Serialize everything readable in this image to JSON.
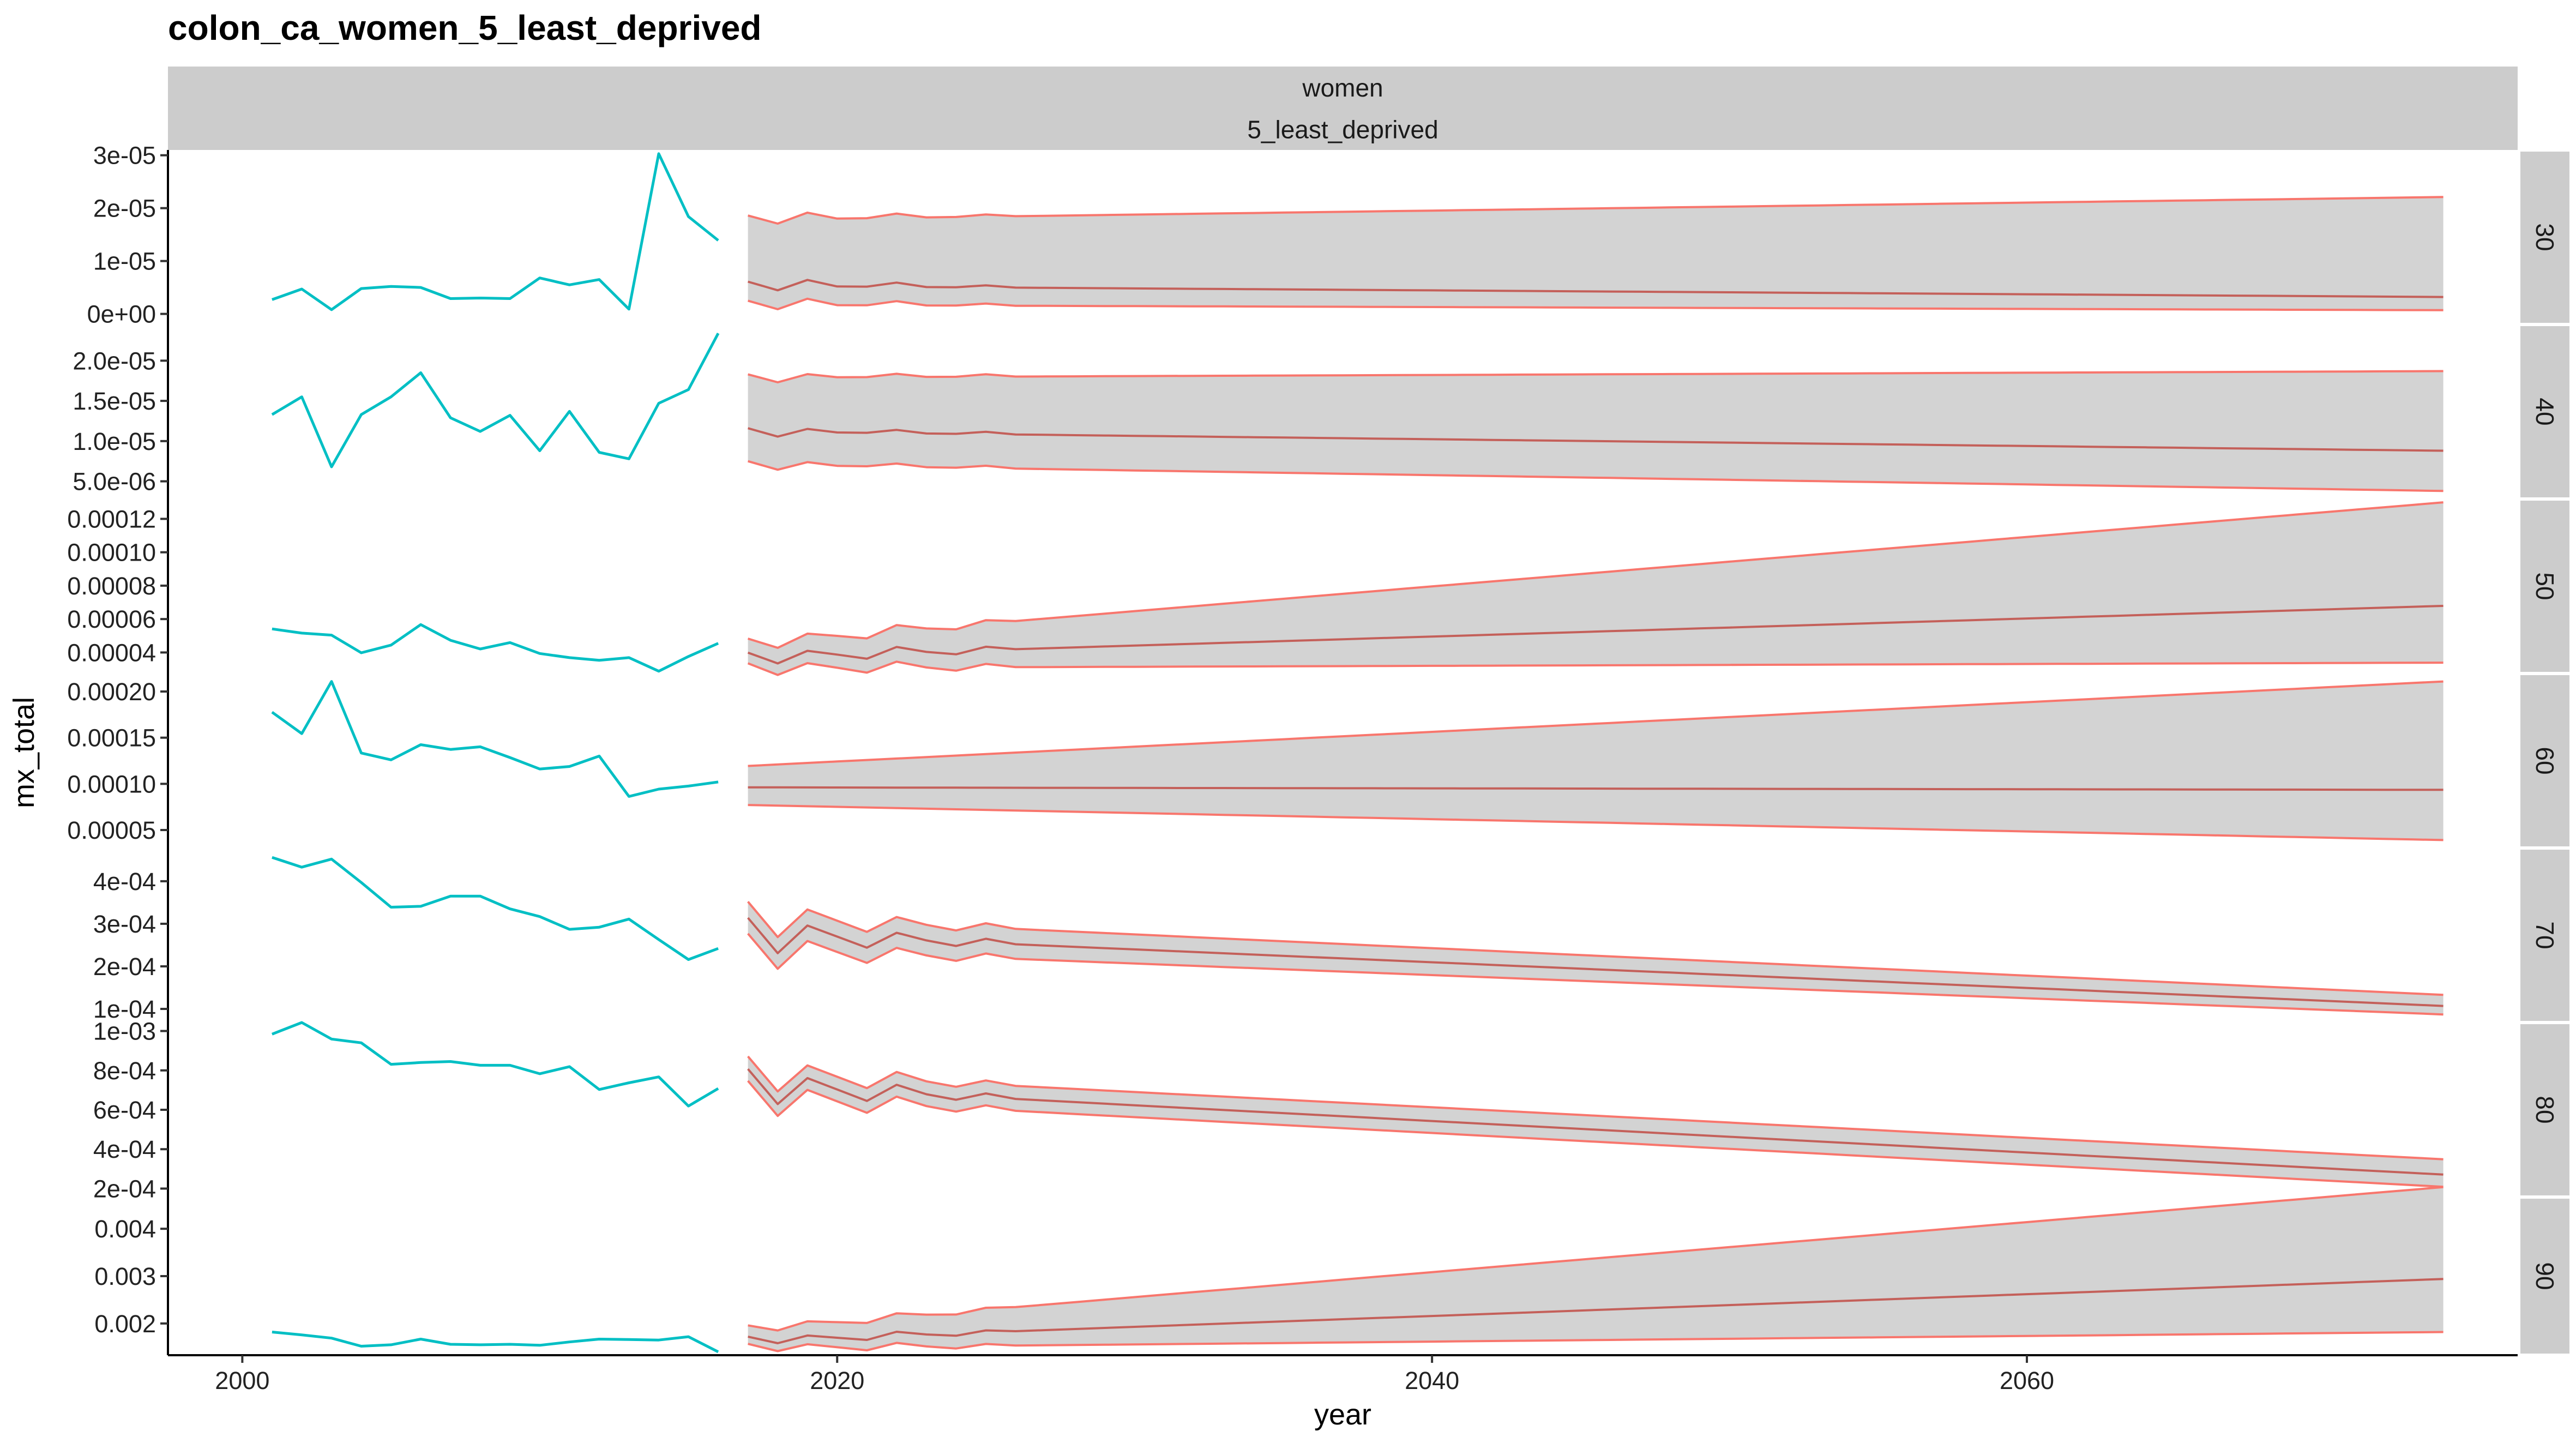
{
  "title": "colon_ca_women_5_least_deprived",
  "colors": {
    "observed": "#00BFC4",
    "forecast_line": "#F8766D",
    "forecast_band": "#D3D3D3",
    "strip": "#CCCCCC"
  },
  "chart_data": {
    "type": "line",
    "title": "colon_ca_women_5_least_deprived",
    "xlabel": "year",
    "ylabel": "mx_total",
    "xlim": [
      1997.5,
      2076.5
    ],
    "x_ticks": [
      2000,
      2020,
      2040,
      2060
    ],
    "x_tick_labels": [
      "2000",
      "2020",
      "2040",
      "2060"
    ],
    "strips_top": [
      "women",
      "5_least_deprived"
    ],
    "grid": false,
    "legend": "none",
    "observed_years": [
      2001,
      2002,
      2003,
      2004,
      2005,
      2006,
      2007,
      2008,
      2009,
      2010,
      2011,
      2012,
      2013,
      2014,
      2015,
      2016
    ],
    "forecast_years": [
      2017,
      2018,
      2019,
      2020,
      2021,
      2022,
      2023,
      2024,
      2025,
      2026,
      2027,
      2028,
      2029,
      2030,
      2031,
      2032,
      2033,
      2034,
      2035,
      2036,
      2037,
      2038,
      2039,
      2040,
      2041,
      2042,
      2043,
      2044,
      2045,
      2046,
      2047,
      2048,
      2049,
      2050,
      2051,
      2052,
      2053,
      2054,
      2055,
      2056,
      2057,
      2058,
      2059,
      2060,
      2061,
      2062,
      2063,
      2064,
      2065,
      2066,
      2067,
      2068,
      2069,
      2070,
      2071,
      2072,
      2073,
      2074
    ],
    "panels": [
      {
        "label": "30",
        "ylim": [
          -2e-06,
          3.1e-05
        ],
        "y_ticks": [
          0,
          1e-05,
          2e-05,
          3e-05
        ],
        "y_tick_labels": [
          "0e+00",
          "1e-05",
          "2e-05",
          "3e-05"
        ],
        "observed": [
          2.7e-06,
          4.7e-06,
          8e-07,
          4.8e-06,
          5.2e-06,
          5e-06,
          2.9e-06,
          3e-06,
          2.9e-06,
          6.8e-06,
          5.5e-06,
          6.5e-06,
          9e-07,
          3.03e-05,
          1.84e-05,
          1.39e-05
        ],
        "forecast": {
          "lower_start": 1.7e-06,
          "lower_end": 7e-07,
          "mean_start": 5.3e-06,
          "mean_end": 3.2e-06,
          "upper_start": 1.78e-05,
          "upper_end": 2.21e-05,
          "jitter": [
            8e-07,
            8e-07,
            1.2e-06,
            0,
            0,
            8e-07,
            0,
            0,
            4e-07,
            0
          ]
        }
      },
      {
        "label": "40",
        "ylim": [
          2.8e-06,
          2.45e-05
        ],
        "y_ticks": [
          5e-06,
          1e-05,
          1.5e-05,
          2e-05
        ],
        "y_tick_labels": [
          "5.0e-06",
          "1.0e-05",
          "1.5e-05",
          "2.0e-05"
        ],
        "observed": [
          1.33e-05,
          1.55e-05,
          6.8e-06,
          1.33e-05,
          1.55e-05,
          1.85e-05,
          1.29e-05,
          1.12e-05,
          1.32e-05,
          8.8e-06,
          1.37e-05,
          8.6e-06,
          7.8e-06,
          1.47e-05,
          1.64e-05,
          2.34e-05
        ],
        "forecast": {
          "lower_start": 7.1e-06,
          "lower_end": 3.8e-06,
          "mean_start": 1.12e-05,
          "mean_end": 8.8e-06,
          "upper_start": 1.79e-05,
          "upper_end": 1.87e-05,
          "jitter": [
            4e-07,
            6e-07,
            4e-07,
            0,
            0,
            4e-07,
            0,
            0,
            3e-07,
            0
          ]
        }
      },
      {
        "label": "50",
        "ylim": [
          2.74e-05,
          0.0001319
        ],
        "y_ticks": [
          4e-05,
          6e-05,
          8e-05,
          0.0001,
          0.00012
        ],
        "y_tick_labels": [
          "0.00004",
          "0.00006",
          "0.00008",
          "0.00010",
          "0.00012"
        ],
        "observed": [
          5.41e-05,
          5.16e-05,
          5.04e-05,
          3.98e-05,
          4.44e-05,
          5.67e-05,
          4.73e-05,
          4.21e-05,
          4.59e-05,
          3.94e-05,
          3.69e-05,
          3.53e-05,
          3.69e-05,
          2.88e-05,
          3.76e-05,
          4.55e-05
        ],
        "forecast": {
          "lower_start": 3.07e-05,
          "lower_end": 3.39e-05,
          "mean_start": 3.71e-05,
          "mean_end": 6.79e-05,
          "upper_start": 4.55e-05,
          "upper_end": 0.0001299,
          "jitter": [
            2.8e-06,
            4.2e-06,
            2.8e-06,
            2e-06,
            3e-06,
            3.5e-06,
            2e-06,
            2e-06,
            2e-06,
            2e-06
          ]
        }
      },
      {
        "label": "60",
        "ylim": [
          3.05e-05,
          0.0002195
        ],
        "y_ticks": [
          5e-05,
          0.0001,
          0.00015,
          0.0002
        ],
        "y_tick_labels": [
          "0.00005",
          "0.00010",
          "0.00015",
          "0.00020"
        ],
        "observed": [
          0.0001776,
          0.0001544,
          0.0002109,
          0.0001334,
          0.000126,
          0.0001424,
          0.0001373,
          0.0001401,
          0.0001285,
          0.0001161,
          0.0001188,
          0.0001301,
          8.64e-05,
          9.43e-05,
          9.76e-05,
          0.000102
        ],
        "forecast": {
          "lower_start": 7.71e-05,
          "lower_end": 3.91e-05,
          "mean_start": 9.62e-05,
          "mean_end": 9.35e-05,
          "upper_start": 0.0001194,
          "upper_end": 0.0002109,
          "jitter": [
            0,
            0,
            0,
            0,
            0,
            0,
            0,
            0,
            0,
            0
          ]
        }
      },
      {
        "label": "70",
        "ylim": [
          6.8e-05,
          0.000478
        ],
        "y_ticks": [
          0.0001,
          0.0002,
          0.0003,
          0.0004
        ],
        "y_tick_labels": [
          "1e-04",
          "2e-04",
          "3e-04",
          "4e-04"
        ],
        "observed": [
          0.000456,
          0.000433,
          0.000452,
          0.000397,
          0.000339,
          0.000341,
          0.000365,
          0.000365,
          0.000335,
          0.000317,
          0.000287,
          0.000292,
          0.000311,
          0.000263,
          0.000216,
          0.000242
        ],
        "forecast": {
          "lower_start": 0.000242,
          "lower_end": 8.7e-05,
          "mean_start": 0.000279,
          "mean_end": 0.000107,
          "upper_start": 0.000317,
          "upper_end": 0.000133,
          "jitter": [
            3.5e-05,
            4.5e-05,
            2.3e-05,
            1.5e-05,
            2.3e-05,
            1.5e-05,
            1e-05,
            1e-05,
            1e-05,
            1e-05
          ]
        }
      },
      {
        "label": "80",
        "ylim": [
          0.000157,
          0.001043
        ],
        "y_ticks": [
          0.0002,
          0.0004,
          0.0006,
          0.0008,
          0.001
        ],
        "y_tick_labels": [
          "2e-04",
          "4e-04",
          "6e-04",
          "8e-04",
          "1e-03"
        ],
        "observed": [
          0.000984,
          0.001043,
          0.000959,
          0.00094,
          0.000831,
          0.00084,
          0.000845,
          0.000826,
          0.000826,
          0.000783,
          0.000819,
          0.000703,
          0.000737,
          0.000767,
          0.000619,
          0.000708
        ],
        "forecast": {
          "lower_start": 0.000667,
          "lower_end": 0.000209,
          "mean_start": 0.000727,
          "mean_end": 0.000271,
          "upper_start": 0.000791,
          "upper_end": 0.000349,
          "jitter": [
            8e-05,
            9e-05,
            5e-05,
            3e-05,
            5e-05,
            4e-05,
            2e-05,
            2e-05,
            2e-05,
            2e-05
          ]
        }
      },
      {
        "label": "90",
        "ylim": [
          0.00133,
          0.00467
        ],
        "y_ticks": [
          0.002,
          0.003,
          0.004
        ],
        "y_tick_labels": [
          "0.002",
          "0.003",
          "0.004"
        ],
        "observed": [
          0.00182,
          0.00176,
          0.00169,
          0.00152,
          0.00155,
          0.00167,
          0.00156,
          0.00155,
          0.00156,
          0.00154,
          0.00161,
          0.00167,
          0.00166,
          0.00165,
          0.00172,
          0.0014
        ],
        "forecast": {
          "lower_start": 0.00148,
          "lower_end": 0.00182,
          "mean_start": 0.00163,
          "mean_end": 0.00294,
          "upper_start": 0.00187,
          "upper_end": 0.00488,
          "jitter": [
            9e-05,
            7e-05,
            7e-05,
            5e-05,
            7e-05,
            8e-05,
            5e-05,
            5e-05,
            4e-05,
            4e-05
          ]
        }
      }
    ]
  }
}
